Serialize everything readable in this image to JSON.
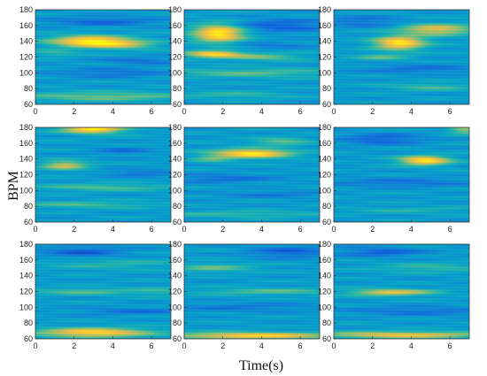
{
  "chart_data": {
    "type": "heatmap",
    "layout": "3x3 grid of time-frequency (wavelet scalogram) heatmaps",
    "xlabel": "Time(s)",
    "ylabel": "BPM",
    "xlim": [
      0,
      7
    ],
    "ylim": [
      60,
      180
    ],
    "x_ticks": [
      "0",
      "2",
      "4",
      "6"
    ],
    "y_ticks": [
      "60",
      "80",
      "100",
      "120",
      "140",
      "160",
      "180"
    ],
    "colormap": [
      "#352a87",
      "#0f5cdd",
      "#1481d6",
      "#06a4ca",
      "#2eb7a4",
      "#87bf77",
      "#d1bb59",
      "#fec832",
      "#f9fb0e"
    ],
    "background_level": 0.35,
    "panels": [
      {
        "hotspots": [
          {
            "t": 2.8,
            "bpm": 140,
            "st": 1.4,
            "sb": 5,
            "a": 0.62
          },
          {
            "t": 4.5,
            "bpm": 136,
            "st": 1.2,
            "sb": 4,
            "a": 0.3
          },
          {
            "t": 3.5,
            "bpm": 70,
            "st": 3.0,
            "sb": 4,
            "a": 0.25
          },
          {
            "t": 1.0,
            "bpm": 125,
            "st": 0.8,
            "sb": 3,
            "a": 0.15
          },
          {
            "t": 3.5,
            "bpm": 165,
            "st": 2.0,
            "sb": 4,
            "a": -0.18
          },
          {
            "t": 4.0,
            "bpm": 100,
            "st": 2.0,
            "sb": 4,
            "a": -0.15
          },
          {
            "t": 5.5,
            "bpm": 115,
            "st": 1.5,
            "sb": 3,
            "a": -0.15
          }
        ]
      },
      {
        "hotspots": [
          {
            "t": 1.8,
            "bpm": 150,
            "st": 0.9,
            "sb": 8,
            "a": 0.65
          },
          {
            "t": 1.5,
            "bpm": 124,
            "st": 1.0,
            "sb": 3,
            "a": 0.55
          },
          {
            "t": 4.0,
            "bpm": 120,
            "st": 1.5,
            "sb": 3,
            "a": 0.25
          },
          {
            "t": 3.5,
            "bpm": 100,
            "st": 3.0,
            "sb": 4,
            "a": 0.2
          },
          {
            "t": 2.5,
            "bpm": 72,
            "st": 2.0,
            "sb": 3,
            "a": 0.15
          },
          {
            "t": 5.0,
            "bpm": 160,
            "st": 1.8,
            "sb": 6,
            "a": -0.2
          },
          {
            "t": 4.5,
            "bpm": 135,
            "st": 1.5,
            "sb": 3,
            "a": -0.12
          }
        ]
      },
      {
        "hotspots": [
          {
            "t": 3.4,
            "bpm": 138,
            "st": 0.9,
            "sb": 6,
            "a": 0.62
          },
          {
            "t": 5.3,
            "bpm": 155,
            "st": 1.3,
            "sb": 5,
            "a": 0.45
          },
          {
            "t": 2.5,
            "bpm": 120,
            "st": 1.0,
            "sb": 3,
            "a": 0.2
          },
          {
            "t": 5.0,
            "bpm": 82,
            "st": 1.5,
            "sb": 3,
            "a": 0.18
          },
          {
            "t": 1.5,
            "bpm": 165,
            "st": 1.5,
            "sb": 5,
            "a": -0.15
          },
          {
            "t": 4.5,
            "bpm": 105,
            "st": 2.0,
            "sb": 4,
            "a": -0.15
          }
        ]
      },
      {
        "hotspots": [
          {
            "t": 3.0,
            "bpm": 178,
            "st": 1.1,
            "sb": 4,
            "a": 0.62
          },
          {
            "t": 1.5,
            "bpm": 132,
            "st": 0.8,
            "sb": 4,
            "a": 0.4
          },
          {
            "t": 3.5,
            "bpm": 104,
            "st": 2.5,
            "sb": 3,
            "a": 0.2
          },
          {
            "t": 2.5,
            "bpm": 82,
            "st": 2.5,
            "sb": 3,
            "a": 0.18
          },
          {
            "t": 4.5,
            "bpm": 150,
            "st": 1.0,
            "sb": 3,
            "a": -0.15
          },
          {
            "t": 5.5,
            "bpm": 122,
            "st": 1.2,
            "sb": 3,
            "a": -0.15
          }
        ]
      },
      {
        "hotspots": [
          {
            "t": 3.5,
            "bpm": 147,
            "st": 1.4,
            "sb": 4,
            "a": 0.62
          },
          {
            "t": 5.0,
            "bpm": 162,
            "st": 1.0,
            "sb": 3,
            "a": 0.25
          },
          {
            "t": 1.5,
            "bpm": 140,
            "st": 0.7,
            "sb": 3,
            "a": 0.2
          },
          {
            "t": 3.0,
            "bpm": 70,
            "st": 3.0,
            "sb": 3,
            "a": 0.15
          },
          {
            "t": 2.0,
            "bpm": 115,
            "st": 2.0,
            "sb": 4,
            "a": -0.15
          },
          {
            "t": 4.5,
            "bpm": 95,
            "st": 2.0,
            "sb": 3,
            "a": -0.12
          }
        ]
      },
      {
        "hotspots": [
          {
            "t": 4.7,
            "bpm": 138,
            "st": 0.9,
            "sb": 4,
            "a": 0.62
          },
          {
            "t": 6.8,
            "bpm": 178,
            "st": 0.6,
            "sb": 4,
            "a": 0.35
          },
          {
            "t": 2.5,
            "bpm": 165,
            "st": 1.5,
            "sb": 5,
            "a": -0.2
          },
          {
            "t": 3.5,
            "bpm": 110,
            "st": 2.5,
            "sb": 4,
            "a": -0.15
          },
          {
            "t": 4.0,
            "bpm": 75,
            "st": 2.5,
            "sb": 3,
            "a": 0.1
          }
        ]
      },
      {
        "hotspots": [
          {
            "t": 3.0,
            "bpm": 68,
            "st": 2.0,
            "sb": 4,
            "a": 0.58
          },
          {
            "t": 2.5,
            "bpm": 120,
            "st": 2.0,
            "sb": 3,
            "a": 0.2
          },
          {
            "t": 4.0,
            "bpm": 155,
            "st": 2.5,
            "sb": 5,
            "a": 0.12
          },
          {
            "t": 2.5,
            "bpm": 170,
            "st": 1.5,
            "sb": 5,
            "a": -0.2
          },
          {
            "t": 5.0,
            "bpm": 95,
            "st": 2.0,
            "sb": 3,
            "a": -0.15
          },
          {
            "t": 6.5,
            "bpm": 120,
            "st": 1.0,
            "sb": 4,
            "a": 0.12
          }
        ]
      },
      {
        "hotspots": [
          {
            "t": 3.5,
            "bpm": 64,
            "st": 3.0,
            "sb": 3,
            "a": 0.55
          },
          {
            "t": 1.5,
            "bpm": 150,
            "st": 1.5,
            "sb": 4,
            "a": 0.2
          },
          {
            "t": 4.5,
            "bpm": 120,
            "st": 2.5,
            "sb": 3,
            "a": 0.2
          },
          {
            "t": 5.5,
            "bpm": 170,
            "st": 1.5,
            "sb": 5,
            "a": -0.2
          },
          {
            "t": 3.0,
            "bpm": 100,
            "st": 2.5,
            "sb": 4,
            "a": -0.12
          }
        ]
      },
      {
        "hotspots": [
          {
            "t": 3.5,
            "bpm": 65,
            "st": 3.0,
            "sb": 3,
            "a": 0.48
          },
          {
            "t": 3.0,
            "bpm": 119,
            "st": 1.5,
            "sb": 3,
            "a": 0.45
          },
          {
            "t": 5.0,
            "bpm": 150,
            "st": 2.0,
            "sb": 4,
            "a": 0.15
          },
          {
            "t": 2.5,
            "bpm": 170,
            "st": 1.5,
            "sb": 4,
            "a": -0.2
          },
          {
            "t": 4.5,
            "bpm": 95,
            "st": 2.5,
            "sb": 4,
            "a": -0.15
          }
        ]
      }
    ]
  }
}
